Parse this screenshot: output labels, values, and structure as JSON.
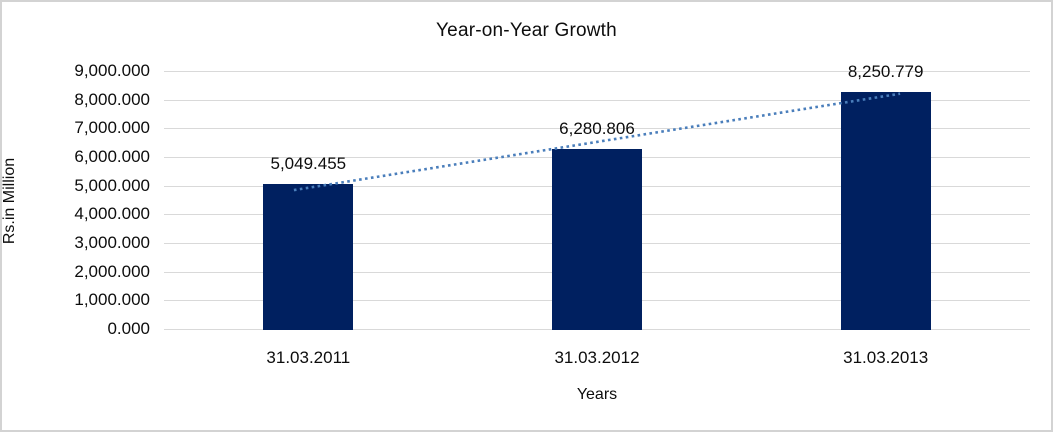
{
  "chart_data": {
    "type": "bar",
    "title": "Year-on-Year Growth",
    "xlabel": "Years",
    "ylabel": "Rs.in Million",
    "categories": [
      "31.03.2011",
      "31.03.2012",
      "31.03.2013"
    ],
    "values": [
      5049.455,
      6280.806,
      8250.779
    ],
    "data_labels": [
      "5,049.455",
      "6,280.806",
      "8,250.779"
    ],
    "ylim": [
      0,
      9000
    ],
    "ytick_step": 1000,
    "ytick_labels": [
      "0.000",
      "1,000.000",
      "2,000.000",
      "3,000.000",
      "4,000.000",
      "5,000.000",
      "6,000.000",
      "7,000.000",
      "8,000.000",
      "9,000.000"
    ],
    "grid": true,
    "legend": "none",
    "trendline": {
      "type": "linear",
      "style": "dotted"
    }
  },
  "colors": {
    "bar": "#002060",
    "trendline": "#4a7ebb",
    "grid": "#d9d9d9",
    "text": "#0d0d0d",
    "frame_border": "#d3d3d3",
    "background": "#ffffff"
  }
}
